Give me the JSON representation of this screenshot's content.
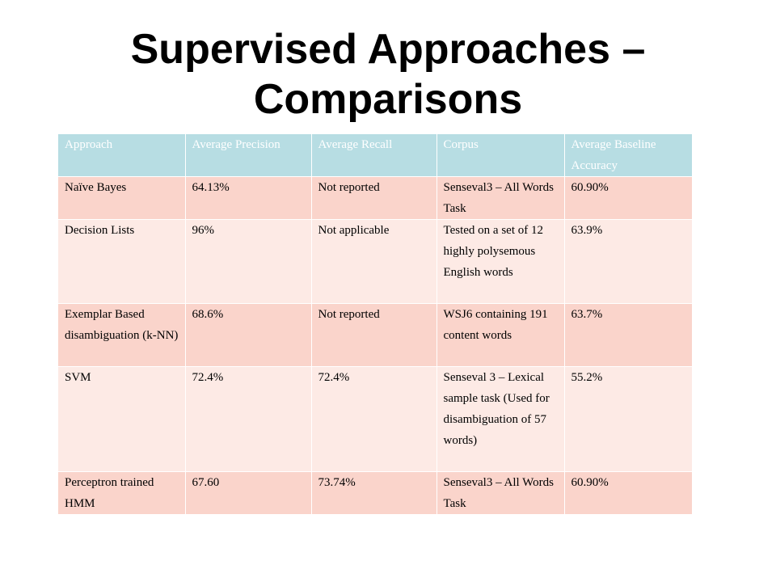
{
  "slide": {
    "title_line1": "Supervised Approaches –",
    "title_line2": "Comparisons"
  },
  "table": {
    "headers": [
      "Approach",
      "Average Precision",
      "Average Recall",
      "Corpus",
      "Average Baseline Accuracy"
    ],
    "rows": [
      [
        "Naïve Bayes",
        "64.13%",
        "Not reported",
        "Senseval3 – All Words Task",
        "60.90%"
      ],
      [
        "Decision Lists",
        "96%",
        "Not applicable",
        "Tested on a set of 12 highly polysemous English words",
        "63.9%"
      ],
      [
        "Exemplar Based disambiguation (k-NN)",
        "68.6%",
        "Not reported",
        "WSJ6 containing 191 content words",
        "63.7%"
      ],
      [
        "SVM",
        "72.4%",
        "72.4%",
        "Senseval 3 – Lexical sample task (Used for disambiguation of 57 words)",
        "55.2%"
      ],
      [
        "Perceptron trained HMM",
        "67.60",
        "73.74%",
        "Senseval3 – All Words Task",
        "60.90%"
      ]
    ]
  },
  "colors": {
    "header_bg": "#b7dde3",
    "row_dark": "#fad4cb",
    "row_light": "#fdeae5"
  }
}
